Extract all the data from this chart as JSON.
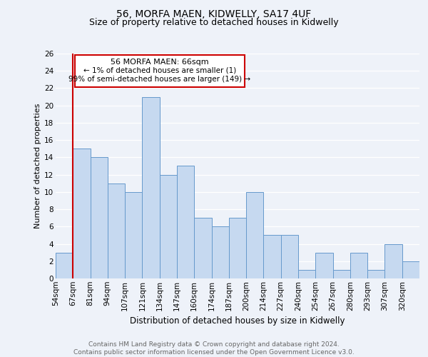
{
  "title": "56, MORFA MAEN, KIDWELLY, SA17 4UF",
  "subtitle": "Size of property relative to detached houses in Kidwelly",
  "xlabel": "Distribution of detached houses by size in Kidwelly",
  "ylabel": "Number of detached properties",
  "footer_line1": "Contains HM Land Registry data © Crown copyright and database right 2024.",
  "footer_line2": "Contains public sector information licensed under the Open Government Licence v3.0.",
  "bin_labels": [
    "54sqm",
    "67sqm",
    "81sqm",
    "94sqm",
    "107sqm",
    "121sqm",
    "134sqm",
    "147sqm",
    "160sqm",
    "174sqm",
    "187sqm",
    "200sqm",
    "214sqm",
    "227sqm",
    "240sqm",
    "254sqm",
    "267sqm",
    "280sqm",
    "293sqm",
    "307sqm",
    "320sqm"
  ],
  "bar_values": [
    3,
    15,
    14,
    11,
    10,
    21,
    12,
    13,
    7,
    6,
    7,
    10,
    5,
    5,
    1,
    3,
    1,
    3,
    1,
    4,
    2
  ],
  "bar_color": "#c6d9f0",
  "bar_edge_color": "#6699cc",
  "highlight_color": "#cc0000",
  "annotation_text_line1": "56 MORFA MAEN: 66sqm",
  "annotation_text_line2": "← 1% of detached houses are smaller (1)",
  "annotation_text_line3": "99% of semi-detached houses are larger (149) →",
  "annotation_box_edge_color": "#cc0000",
  "ylim": [
    0,
    26
  ],
  "yticks": [
    0,
    2,
    4,
    6,
    8,
    10,
    12,
    14,
    16,
    18,
    20,
    22,
    24,
    26
  ],
  "bg_color": "#eef2f9",
  "grid_color": "#ffffff",
  "title_fontsize": 10,
  "subtitle_fontsize": 9,
  "xlabel_fontsize": 8.5,
  "ylabel_fontsize": 8,
  "tick_fontsize": 7.5,
  "footer_fontsize": 6.5,
  "ann_fontsize1": 8,
  "ann_fontsize2": 7.5
}
